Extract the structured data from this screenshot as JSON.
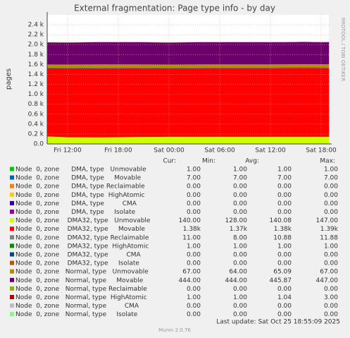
{
  "chart_data": {
    "type": "stacked_area",
    "title": "External fragmentation: Page type info - by day",
    "ylabel": "pages",
    "side_text": "RRDTOOL / TOBI OETIKER",
    "footer": "Munin 2.0.76",
    "last_update": "Last update: Sat Oct 25 18:55:09 2025",
    "legend_header": [
      "Cur:",
      "Min:",
      "Avg:",
      "Max:"
    ],
    "grid": true,
    "ylim": [
      0,
      2600
    ],
    "yticks": [
      {
        "value": 0,
        "label": "0.0"
      },
      {
        "value": 200,
        "label": "0.2 k"
      },
      {
        "value": 400,
        "label": "0.4 k"
      },
      {
        "value": 600,
        "label": "0.6 k"
      },
      {
        "value": 800,
        "label": "0.8 k"
      },
      {
        "value": 1000,
        "label": "1.0 k"
      },
      {
        "value": 1200,
        "label": "1.2 k"
      },
      {
        "value": 1400,
        "label": "1.4 k"
      },
      {
        "value": 1600,
        "label": "1.6 k"
      },
      {
        "value": 1800,
        "label": "1.8 k"
      },
      {
        "value": 2000,
        "label": "2.0 k"
      },
      {
        "value": 2200,
        "label": "2.2 k"
      },
      {
        "value": 2400,
        "label": "2.4 k"
      }
    ],
    "xlim": [
      "2025-10-24T09:35",
      "2025-10-25T18:55"
    ],
    "xticks": [
      {
        "value": "2025-10-24T12:00",
        "label": "Fri 12:00"
      },
      {
        "value": "2025-10-24T18:00",
        "label": "Fri 18:00"
      },
      {
        "value": "2025-10-25T00:00",
        "label": "Sat 00:00"
      },
      {
        "value": "2025-10-25T06:00",
        "label": "Sat 06:00"
      },
      {
        "value": "2025-10-25T12:00",
        "label": "Sat 12:00"
      },
      {
        "value": "2025-10-25T18:00",
        "label": "Sat 18:00"
      }
    ],
    "x": [
      "2025-10-24T09:35",
      "2025-10-24T12:00",
      "2025-10-24T16:00",
      "2025-10-24T20:00",
      "2025-10-25T00:00",
      "2025-10-25T04:00",
      "2025-10-25T08:00",
      "2025-10-25T12:00",
      "2025-10-25T16:00",
      "2025-10-25T18:55"
    ],
    "series": [
      {
        "name": "Node  0, zone      DMA, type   Unmovable",
        "color": "#00CC00",
        "values": [
          1,
          1,
          1,
          1,
          1,
          1,
          1,
          1,
          1,
          1
        ],
        "cur": "1.00",
        "min": "1.00",
        "avg": "1.00",
        "max": "1.00"
      },
      {
        "name": "Node  0, zone      DMA, type     Movable",
        "color": "#0066B3",
        "values": [
          7,
          7,
          7,
          7,
          7,
          7,
          7,
          7,
          7,
          7
        ],
        "cur": "7.00",
        "min": "7.00",
        "avg": "7.00",
        "max": "7.00"
      },
      {
        "name": "Node  0, zone      DMA, type Reclaimable",
        "color": "#FF8000",
        "values": [
          0,
          0,
          0,
          0,
          0,
          0,
          0,
          0,
          0,
          0
        ],
        "cur": "0.00",
        "min": "0.00",
        "avg": "0.00",
        "max": "0.00"
      },
      {
        "name": "Node  0, zone      DMA, type  HighAtomic",
        "color": "#FFCC00",
        "values": [
          0,
          0,
          0,
          0,
          0,
          0,
          0,
          0,
          0,
          0
        ],
        "cur": "0.00",
        "min": "0.00",
        "avg": "0.00",
        "max": "0.00"
      },
      {
        "name": "Node  0, zone      DMA, type         CMA",
        "color": "#330099",
        "values": [
          0,
          0,
          0,
          0,
          0,
          0,
          0,
          0,
          0,
          0
        ],
        "cur": "0.00",
        "min": "0.00",
        "avg": "0.00",
        "max": "0.00"
      },
      {
        "name": "Node  0, zone      DMA, type     Isolate",
        "color": "#990099",
        "values": [
          0,
          0,
          0,
          0,
          0,
          0,
          0,
          0,
          0,
          0
        ],
        "cur": "0.00",
        "min": "0.00",
        "avg": "0.00",
        "max": "0.00"
      },
      {
        "name": "Node  0, zone    DMA32, type   Unmovable",
        "color": "#CCFF00",
        "values": [
          147,
          130,
          128,
          135,
          140,
          140,
          140,
          140,
          140,
          140
        ],
        "cur": "140.00",
        "min": "128.00",
        "avg": "140.08",
        "max": "147.00"
      },
      {
        "name": "Node  0, zone    DMA32, type     Movable",
        "color": "#FF0000",
        "values": [
          1370,
          1385,
          1390,
          1385,
          1375,
          1380,
          1380,
          1380,
          1385,
          1380
        ],
        "cur": "1.38k",
        "min": "1.37k",
        "avg": "1.38k",
        "max": "1.39k"
      },
      {
        "name": "Node  0, zone    DMA32, type Reclaimable",
        "color": "#808080",
        "values": [
          11,
          11,
          12,
          11,
          11,
          11,
          11,
          11,
          11,
          11
        ],
        "cur": "11.00",
        "min": "8.00",
        "avg": "10.88",
        "max": "11.88"
      },
      {
        "name": "Node  0, zone    DMA32, type  HighAtomic",
        "color": "#008F00",
        "values": [
          1,
          1,
          1,
          1,
          1,
          1,
          1,
          1,
          1,
          1
        ],
        "cur": "1.00",
        "min": "1.00",
        "avg": "1.00",
        "max": "1.00"
      },
      {
        "name": "Node  0, zone    DMA32, type         CMA",
        "color": "#00487D",
        "values": [
          0,
          0,
          0,
          0,
          0,
          0,
          0,
          0,
          0,
          0
        ],
        "cur": "0.00",
        "min": "0.00",
        "avg": "0.00",
        "max": "0.00"
      },
      {
        "name": "Node  0, zone    DMA32, type     Isolate",
        "color": "#B35A00",
        "values": [
          0,
          0,
          0,
          0,
          0,
          0,
          0,
          0,
          0,
          0
        ],
        "cur": "0.00",
        "min": "0.00",
        "avg": "0.00",
        "max": "0.00"
      },
      {
        "name": "Node  0, zone   Normal, type   Unmovable",
        "color": "#B38F00",
        "values": [
          64,
          65,
          66,
          65,
          65,
          65,
          65,
          65,
          66,
          67
        ],
        "cur": "67.00",
        "min": "64.00",
        "avg": "65.09",
        "max": "67.00"
      },
      {
        "name": "Node  0, zone   Normal, type     Movable",
        "color": "#6B006B",
        "values": [
          447,
          446,
          446,
          446,
          446,
          446,
          446,
          446,
          445,
          444
        ],
        "cur": "444.00",
        "min": "444.00",
        "avg": "445.87",
        "max": "447.00"
      },
      {
        "name": "Node  0, zone   Normal, type Reclaimable",
        "color": "#8FB300",
        "values": [
          0,
          0,
          0,
          0,
          0,
          0,
          0,
          0,
          0,
          0
        ],
        "cur": "0.00",
        "min": "0.00",
        "avg": "0.00",
        "max": "0.00"
      },
      {
        "name": "Node  0, zone   Normal, type  HighAtomic",
        "color": "#B30000",
        "values": [
          1,
          1,
          1,
          1,
          1,
          1,
          1,
          1,
          1,
          1
        ],
        "cur": "1.00",
        "min": "1.00",
        "avg": "1.04",
        "max": "3.00"
      },
      {
        "name": "Node  0, zone   Normal, type         CMA",
        "color": "#BEBEBE",
        "values": [
          0,
          0,
          0,
          0,
          0,
          0,
          0,
          0,
          0,
          0
        ],
        "cur": "0.00",
        "min": "0.00",
        "avg": "0.00",
        "max": "0.00"
      },
      {
        "name": "Node  0, zone   Normal, type     Isolate",
        "color": "#80FF80",
        "values": [
          0,
          0,
          0,
          0,
          0,
          0,
          0,
          0,
          0,
          0
        ],
        "cur": "0.00",
        "min": "0.00",
        "avg": "0.00",
        "max": "0.00"
      }
    ]
  }
}
